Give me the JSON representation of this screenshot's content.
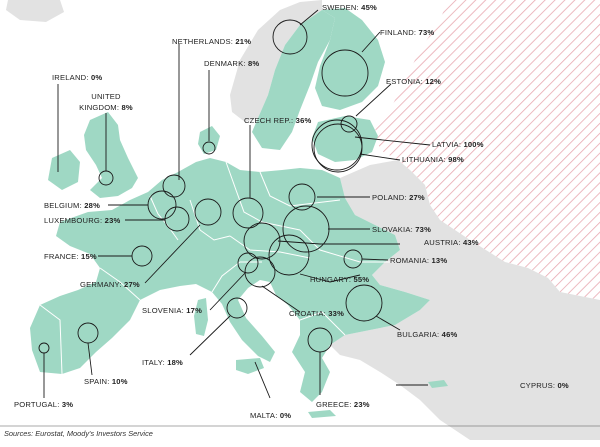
{
  "map": {
    "source": "Sources: Eurostat, Moody's Investors Service",
    "colors": {
      "eu_land": "#9fd8c4",
      "non_eu_land": "#e2e2e2",
      "sea": "#ffffff",
      "russia_hatch": "#e8a9b1",
      "border": "#ffffff",
      "circle_stroke": "#1a1a1a"
    },
    "countries": [
      {
        "name": "SWEDEN",
        "value": "45%"
      },
      {
        "name": "FINLAND",
        "value": "73%"
      },
      {
        "name": "NETHERLANDS",
        "value": "21%"
      },
      {
        "name": "DENMARK",
        "value": "8%"
      },
      {
        "name": "ESTONIA",
        "value": "12%"
      },
      {
        "name": "IRELAND",
        "value": "0%"
      },
      {
        "name": "UNITED",
        "name2": "KINGDOM",
        "value": "8%"
      },
      {
        "name": "CZECH REP.",
        "value": "36%"
      },
      {
        "name": "LATVIA",
        "value": "100%"
      },
      {
        "name": "LITHUANIA",
        "value": "98%"
      },
      {
        "name": "BELGIUM",
        "value": "28%"
      },
      {
        "name": "POLAND",
        "value": "27%"
      },
      {
        "name": "LUXEMBOURG",
        "value": "23%"
      },
      {
        "name": "SLOVAKIA",
        "value": "73%"
      },
      {
        "name": "AUSTRIA",
        "value": "43%"
      },
      {
        "name": "FRANCE",
        "value": "15%"
      },
      {
        "name": "ROMANIA",
        "value": "13%"
      },
      {
        "name": "HUNGARY",
        "value": "55%"
      },
      {
        "name": "GERMANY",
        "value": "27%"
      },
      {
        "name": "SLOVENIA",
        "value": "17%"
      },
      {
        "name": "CROATIA",
        "value": "33%"
      },
      {
        "name": "BULGARIA",
        "value": "46%"
      },
      {
        "name": "ITALY",
        "value": "18%"
      },
      {
        "name": "SPAIN",
        "value": "10%"
      },
      {
        "name": "CYPRUS",
        "value": "0%"
      },
      {
        "name": "PORTUGAL",
        "value": "3%"
      },
      {
        "name": "MALTA",
        "value": "0%"
      },
      {
        "name": "GREECE",
        "value": "23%"
      }
    ]
  }
}
